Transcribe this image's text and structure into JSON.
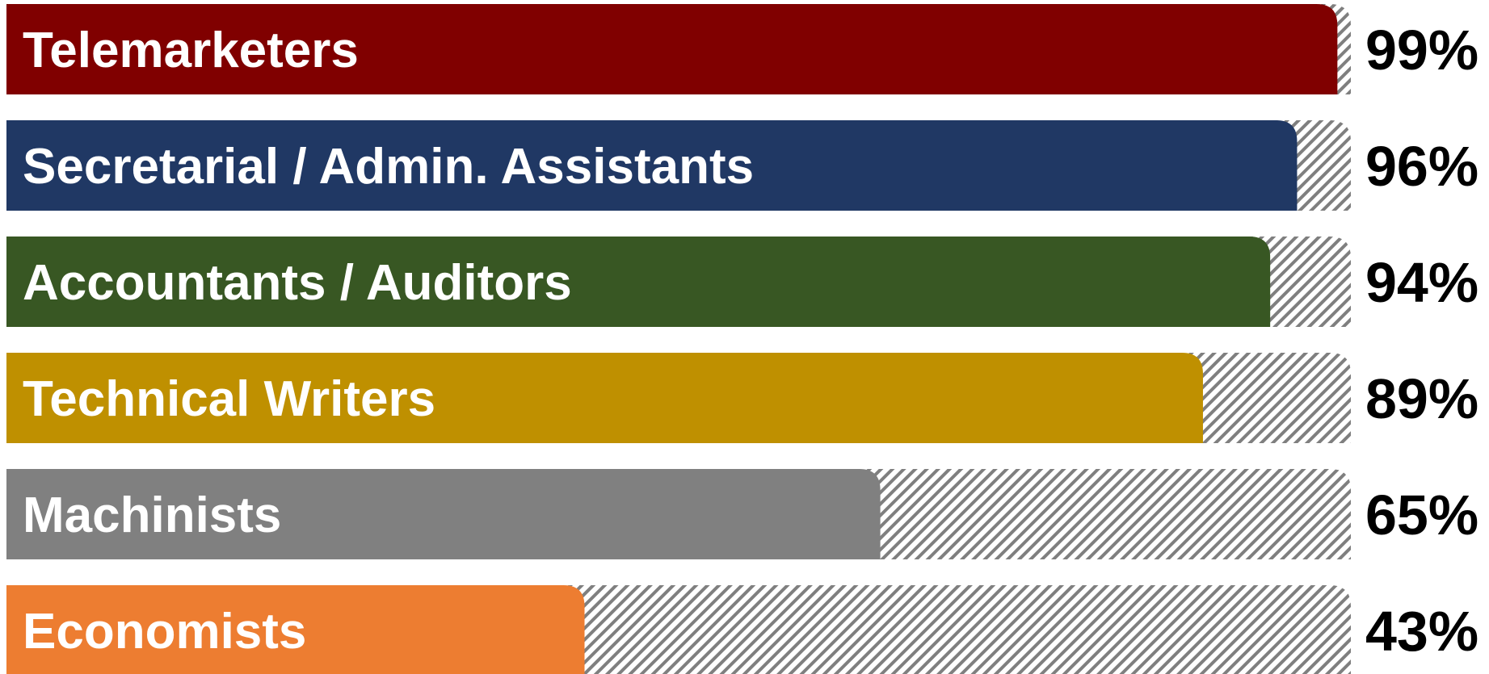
{
  "chart_data": {
    "type": "bar",
    "orientation": "horizontal",
    "categories": [
      "Telemarketers",
      "Secretarial / Admin. Assistants",
      "Accountants / Auditors",
      "Technical Writers",
      "Machinists",
      "Economists"
    ],
    "values": [
      99,
      96,
      94,
      89,
      65,
      43
    ],
    "value_labels": [
      "99%",
      "96%",
      "94%",
      "89%",
      "65%",
      "43%"
    ],
    "colors": [
      "#800000",
      "#203864",
      "#385723",
      "#BF9000",
      "#808080",
      "#ED7D31"
    ],
    "xlim": [
      0,
      100
    ],
    "remainder_fill": "hatched",
    "hatch_color": "#7f7f7f",
    "grid": false,
    "legend": "none"
  }
}
